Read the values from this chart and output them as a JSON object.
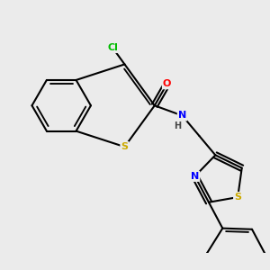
{
  "background_color": "#ebebeb",
  "bond_color": "#000000",
  "lw": 1.5,
  "atom_colors": {
    "Cl": "#00bb00",
    "O": "#ff0000",
    "N": "#0000ff",
    "S": "#ccaa00",
    "H": "#555555"
  },
  "figsize": [
    3.0,
    3.0
  ],
  "dpi": 100,
  "xlim": [
    0.0,
    9.0
  ],
  "ylim": [
    0.5,
    8.5
  ]
}
